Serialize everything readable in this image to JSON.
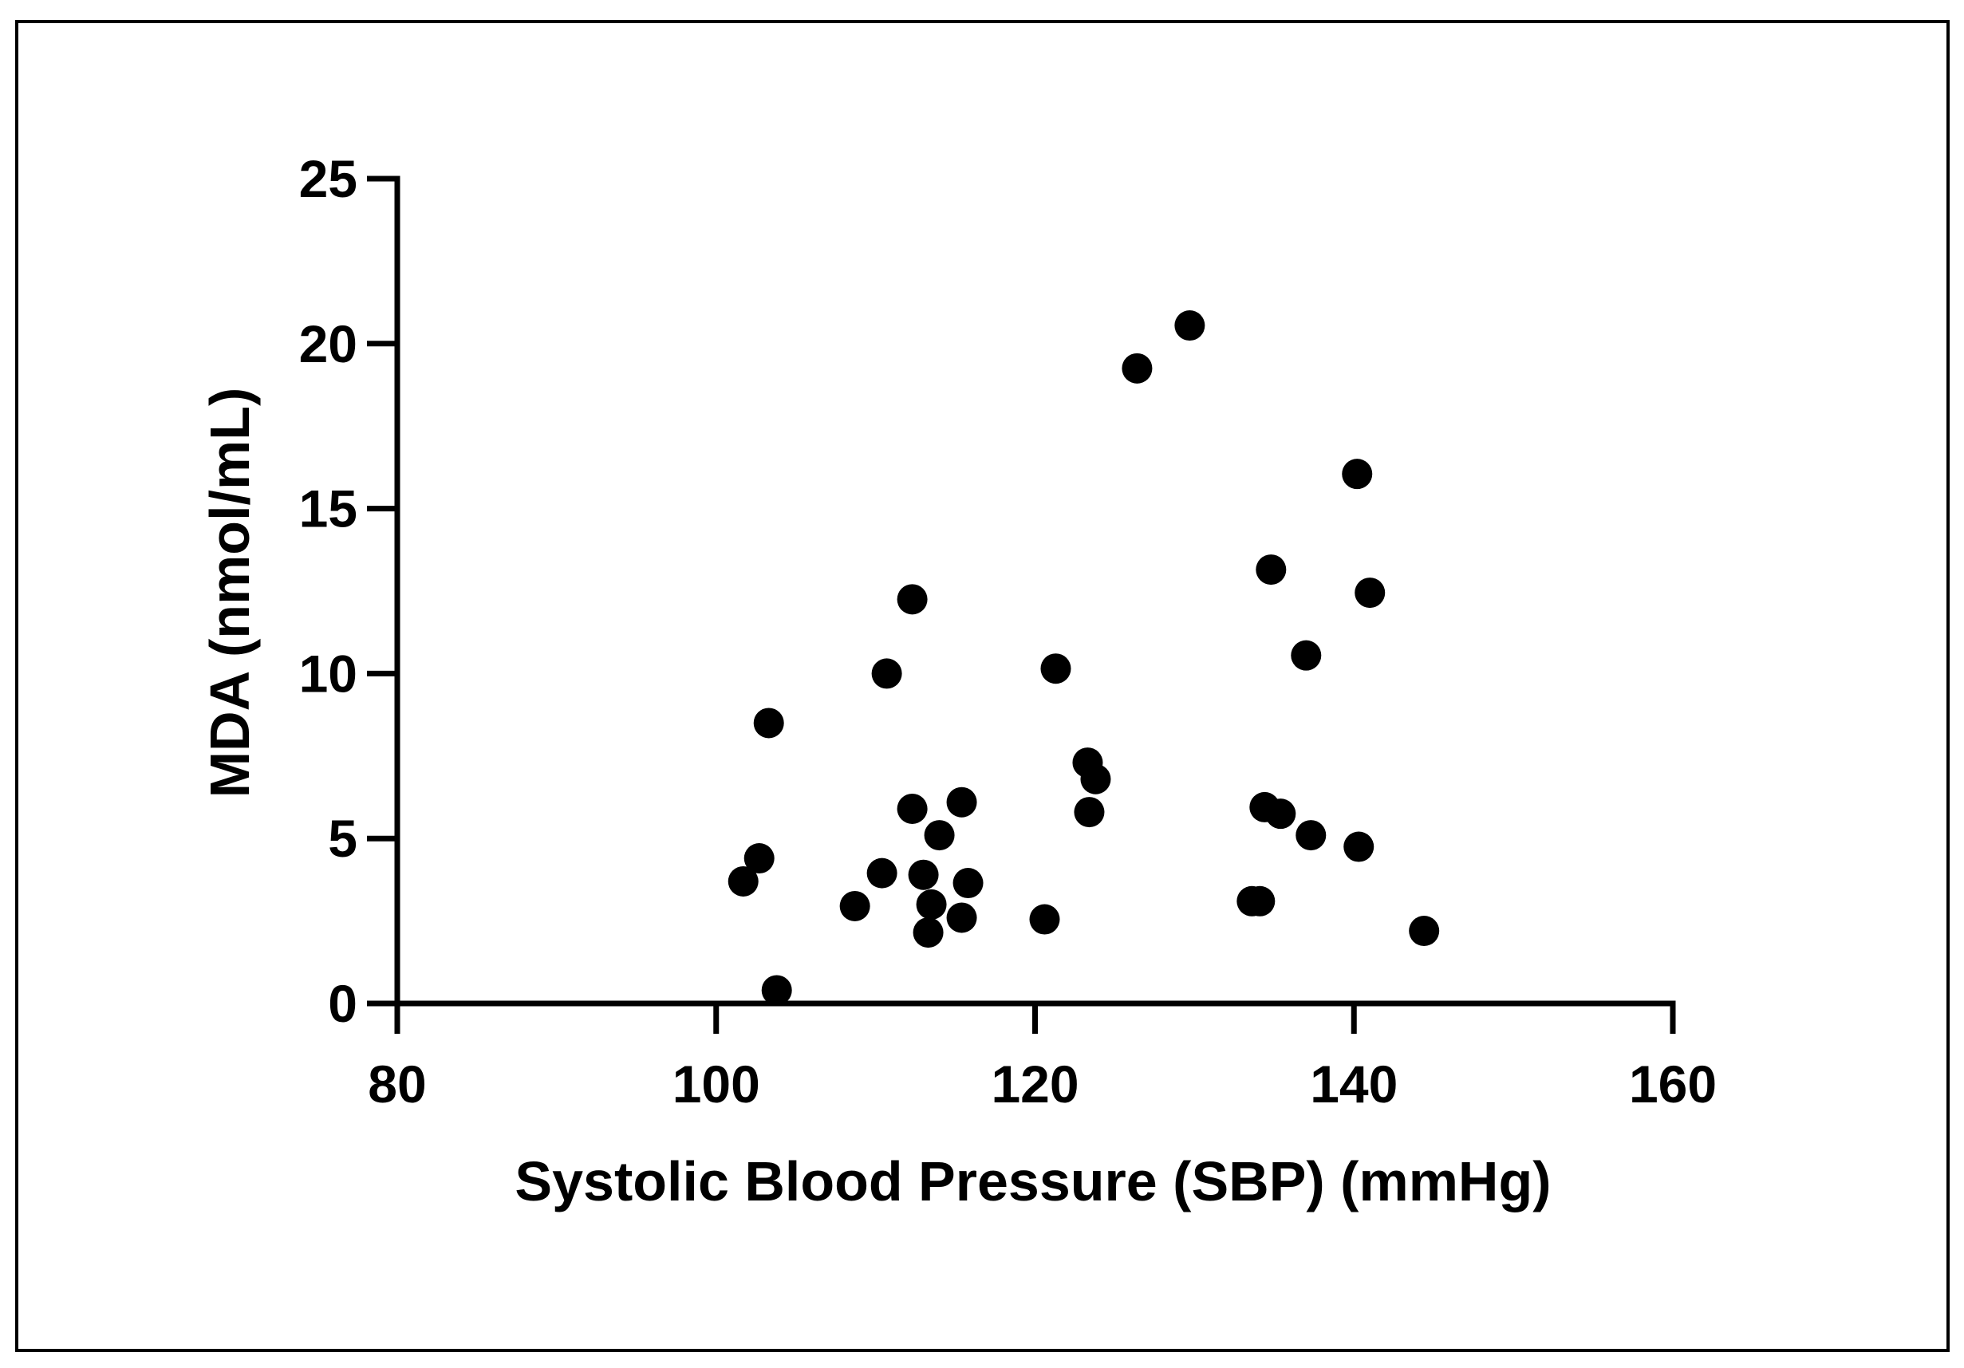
{
  "chart_data": {
    "type": "scatter",
    "title": "",
    "xlabel": "Systolic Blood Pressure (SBP) (mmHg)",
    "ylabel": "MDA (nmol/mL)",
    "xlim": [
      80,
      160
    ],
    "ylim": [
      0,
      25
    ],
    "xticks": [
      80,
      100,
      120,
      140,
      160
    ],
    "yticks": [
      0,
      5,
      10,
      15,
      20,
      25
    ],
    "xtick_labels": [
      "80",
      "100",
      "120",
      "140",
      "160"
    ],
    "ytick_labels": [
      "0",
      "5",
      "10",
      "15",
      "20",
      "25"
    ],
    "grid": false,
    "legend": "none",
    "series": [
      {
        "name": "MDA vs SBP",
        "color": "#000000",
        "points": [
          {
            "x": 101.7,
            "y": 3.7
          },
          {
            "x": 102.7,
            "y": 4.4
          },
          {
            "x": 103.3,
            "y": 8.5
          },
          {
            "x": 103.8,
            "y": 0.4
          },
          {
            "x": 108.7,
            "y": 2.95
          },
          {
            "x": 110.4,
            "y": 3.95
          },
          {
            "x": 110.7,
            "y": 10.0
          },
          {
            "x": 112.3,
            "y": 5.9
          },
          {
            "x": 112.3,
            "y": 12.25
          },
          {
            "x": 113.0,
            "y": 3.9
          },
          {
            "x": 113.3,
            "y": 2.15
          },
          {
            "x": 113.5,
            "y": 3.0
          },
          {
            "x": 114.0,
            "y": 5.1
          },
          {
            "x": 115.4,
            "y": 6.1
          },
          {
            "x": 115.4,
            "y": 2.6
          },
          {
            "x": 115.8,
            "y": 3.65
          },
          {
            "x": 120.6,
            "y": 2.55
          },
          {
            "x": 121.3,
            "y": 10.15
          },
          {
            "x": 123.3,
            "y": 7.3
          },
          {
            "x": 123.4,
            "y": 5.8
          },
          {
            "x": 123.8,
            "y": 6.8
          },
          {
            "x": 126.4,
            "y": 19.25
          },
          {
            "x": 129.7,
            "y": 20.55
          },
          {
            "x": 133.6,
            "y": 3.1
          },
          {
            "x": 134.1,
            "y": 3.1
          },
          {
            "x": 134.4,
            "y": 5.95
          },
          {
            "x": 134.8,
            "y": 13.15
          },
          {
            "x": 135.4,
            "y": 5.75
          },
          {
            "x": 137.0,
            "y": 10.55
          },
          {
            "x": 137.3,
            "y": 5.1
          },
          {
            "x": 140.2,
            "y": 16.05
          },
          {
            "x": 140.3,
            "y": 4.75
          },
          {
            "x": 141.0,
            "y": 12.45
          },
          {
            "x": 144.4,
            "y": 2.2
          }
        ]
      }
    ]
  }
}
